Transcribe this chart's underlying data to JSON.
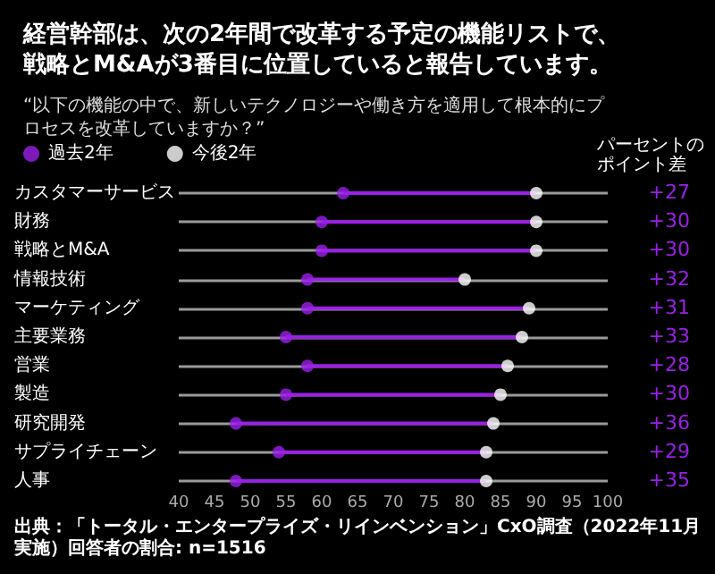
{
  "chart_data": {
    "type": "scatter",
    "title": "経営幹部は、次の2年間で改革する予定の機能リストで、戦略とM&Aが3番目に位置していると報告しています。",
    "subtitle": "“以下の機能の中で、新しいテクノロジーや働き方を適用して根本的にプロセスを改革していますか？”",
    "orientation": "horizontal",
    "categories": [
      "カスタマーサービス",
      "財務",
      "戦略とM&A",
      "情報技術",
      "マーケティング",
      "主要業務",
      "営業",
      "製造",
      "研究開発",
      "サプライチェーン",
      "人事"
    ],
    "series": [
      {
        "name": "過去2年",
        "color": "#9b1fe8",
        "values": [
          63,
          60,
          60,
          58,
          58,
          55,
          58,
          55,
          48,
          54,
          48
        ]
      },
      {
        "name": "今後2年",
        "color": "#ffffff",
        "values": [
          90,
          90,
          90,
          80,
          89,
          88,
          86,
          85,
          84,
          83,
          83
        ]
      }
    ],
    "xlim": [
      40,
      100
    ],
    "xticks": [
      40,
      45,
      50,
      55,
      60,
      65,
      70,
      75,
      80,
      85,
      90,
      95,
      100
    ],
    "grid": "y",
    "legend": "top left",
    "marker": "circle",
    "annotations": [
      "パーセントのポイント差",
      "+27",
      "+30",
      "+30",
      "+32",
      "+31",
      "+33",
      "+28",
      "+30",
      "+36",
      "+29",
      "+35",
      "出典：「トータル・エンタープライズ・リインベンション」CxO調査（2022年11月実施）回答者の割合: n=1516"
    ]
  }
}
